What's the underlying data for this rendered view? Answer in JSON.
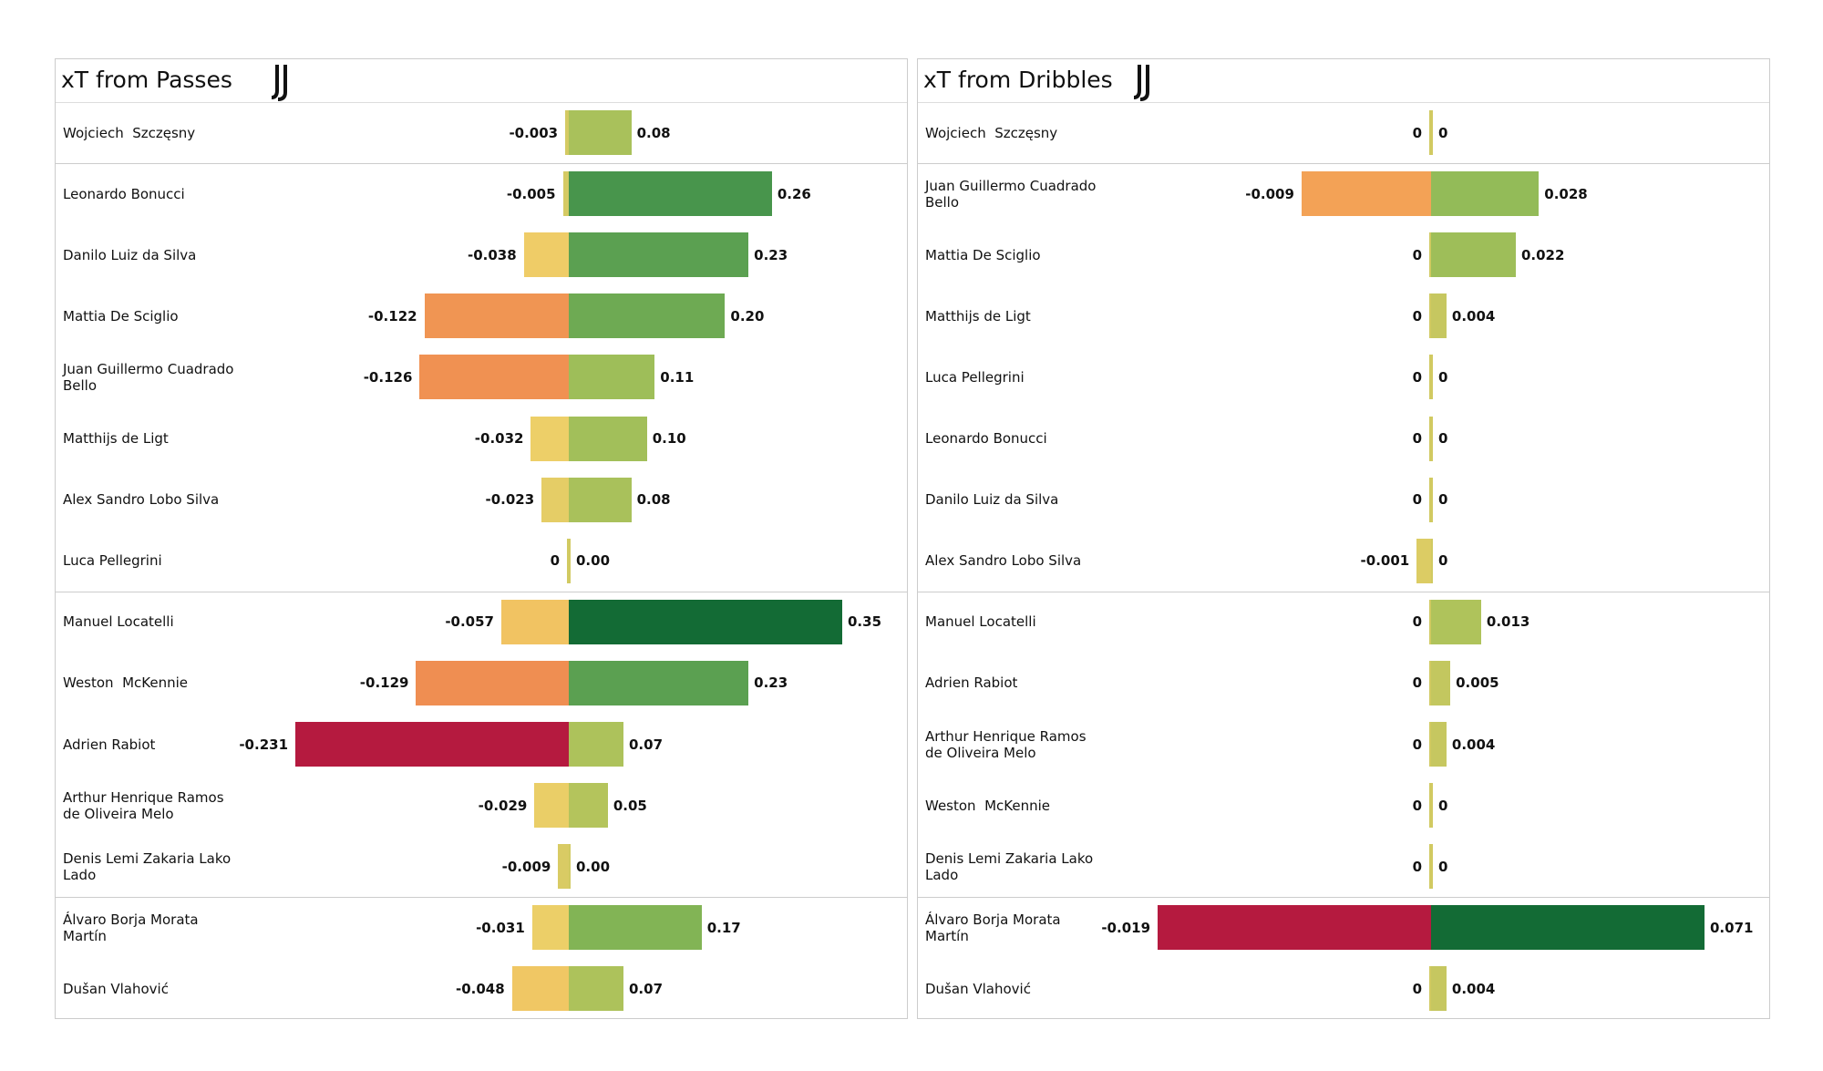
{
  "chart_data": [
    {
      "type": "diverging-bar",
      "title": "xT from Passes",
      "categories": [
        "Wojciech  Szczęsny",
        "Leonardo Bonucci",
        "Danilo Luiz da Silva",
        "Mattia De Sciglio",
        "Juan Guillermo Cuadrado Bello",
        "Matthijs de Ligt",
        "Alex Sandro Lobo Silva",
        "Luca Pellegrini",
        "Manuel Locatelli",
        "Weston  McKennie",
        "Adrien Rabiot",
        "Arthur Henrique Ramos de Oliveira Melo",
        "Denis Lemi Zakaria Lako Lado",
        "Álvaro Borja Morata Martín",
        "Dušan Vlahović"
      ],
      "series": [
        {
          "values": [
            -0.003,
            -0.005,
            -0.038,
            -0.122,
            -0.126,
            -0.032,
            -0.023,
            0,
            -0.057,
            -0.129,
            -0.231,
            -0.029,
            -0.009,
            -0.031,
            -0.048
          ]
        },
        {
          "values": [
            0.08,
            0.26,
            0.23,
            0.2,
            0.11,
            0.1,
            0.08,
            0,
            0.35,
            0.23,
            0.07,
            0.05,
            0,
            0.17,
            0.07
          ],
          "value_labels": [
            "0.08",
            "0.26",
            "0.23",
            "0.20",
            "0.11",
            "0.10",
            "0.08",
            "0.00",
            "0.35",
            "0.23",
            "0.07",
            "0.05",
            "0.00",
            "0.17",
            "0.07"
          ]
        }
      ],
      "colormap": [
        "#b51a3f",
        "#e8694a",
        "#f5ad58",
        "#eecf68",
        "#b4c45c",
        "#8fba57",
        "#4e9a4f",
        "#136b35"
      ]
    },
    {
      "type": "diverging-bar",
      "title": "xT from Dribbles",
      "categories": [
        "Wojciech  Szczęsny",
        "Juan Guillermo Cuadrado Bello",
        "Mattia De Sciglio",
        "Matthijs de Ligt",
        "Luca Pellegrini",
        "Leonardo Bonucci",
        "Danilo Luiz da Silva",
        "Alex Sandro Lobo Silva",
        "Manuel Locatelli",
        "Adrien Rabiot",
        "Arthur Henrique Ramos de Oliveira Melo",
        "Weston  McKennie",
        "Denis Lemi Zakaria Lako Lado",
        "Álvaro Borja Morata Martín",
        "Dušan Vlahović"
      ],
      "series": [
        {
          "values": [
            0,
            -0.009,
            0,
            0,
            0,
            0,
            0,
            -0.001,
            0,
            0,
            0,
            0,
            0,
            -0.019,
            0
          ]
        },
        {
          "values": [
            0,
            0.028,
            0.022,
            0.004,
            0,
            0,
            0,
            0,
            0.013,
            0.005,
            0.004,
            0,
            0,
            0.071,
            0.004
          ]
        }
      ],
      "colormap": [
        "#b51a3f",
        "#e8694a",
        "#f5ad58",
        "#eecf68",
        "#b4c45c",
        "#8fba57",
        "#4e9a4f",
        "#136b35"
      ]
    }
  ]
}
